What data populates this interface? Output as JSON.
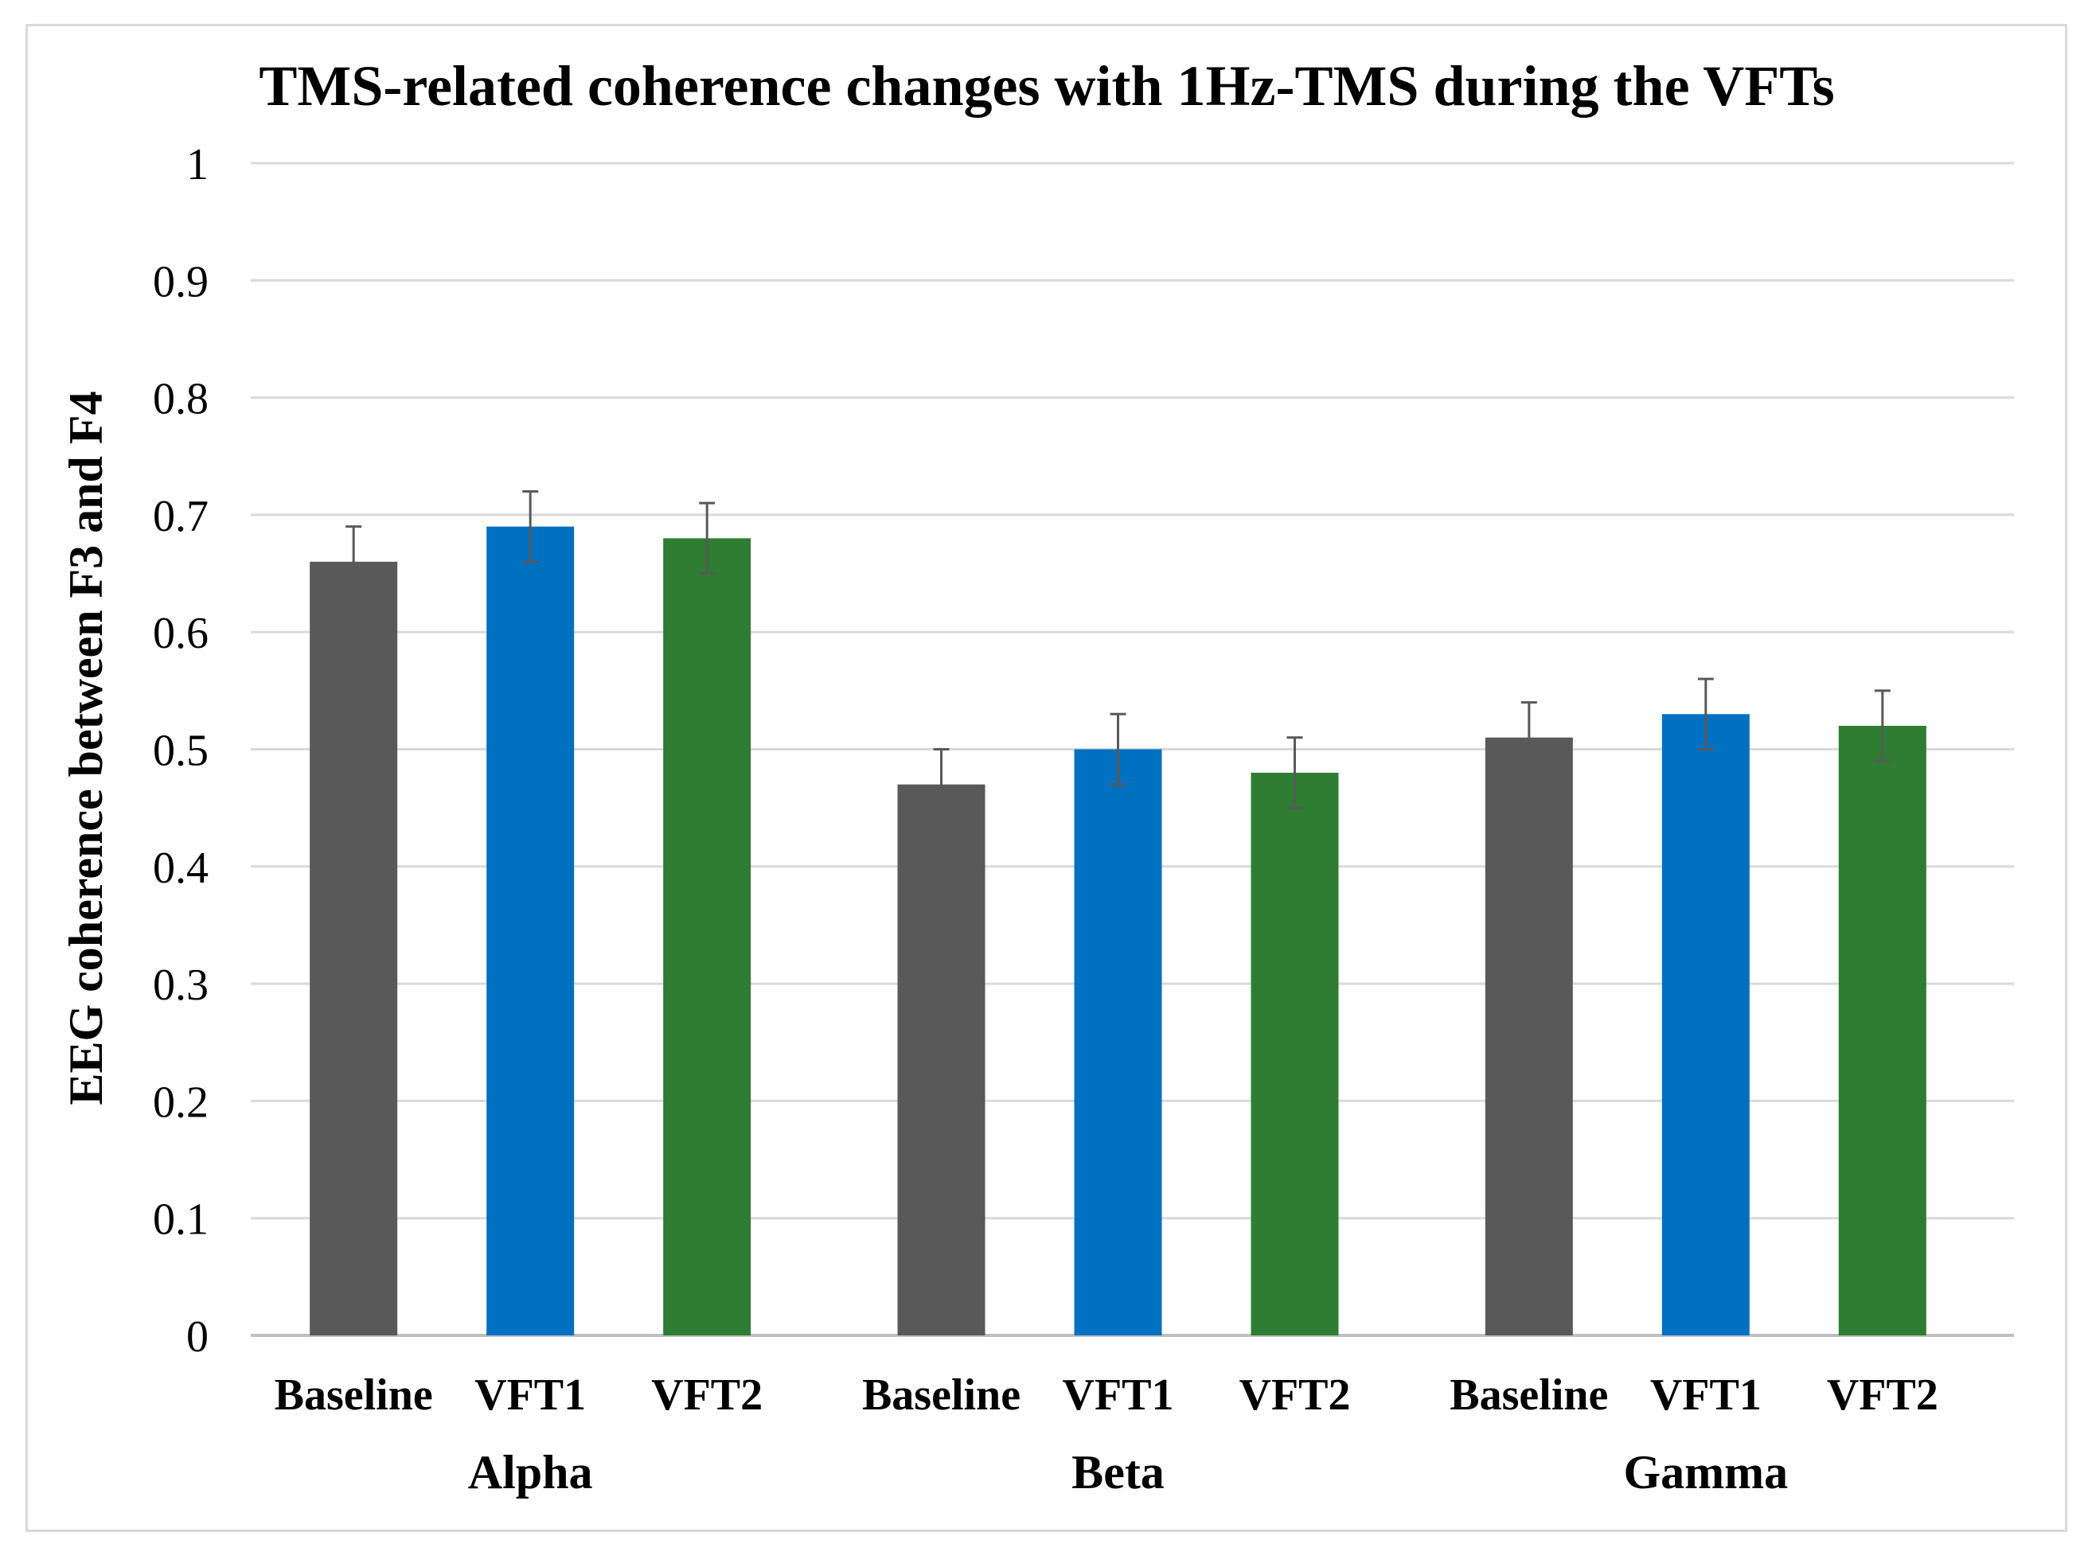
{
  "chart_data": {
    "type": "bar",
    "title": "TMS-related coherence changes with 1Hz-TMS during the VFTs",
    "ylabel": "EEG coherence between F3 and F4",
    "xlabel": "",
    "ylim": [
      0,
      1
    ],
    "yticks": [
      "0",
      "0.1",
      "0.2",
      "0.3",
      "0.4",
      "0.5",
      "0.6",
      "0.7",
      "0.8",
      "0.9",
      "1"
    ],
    "grid": true,
    "legend": "none",
    "groups": [
      {
        "name": "Alpha",
        "bars": [
          {
            "label": "Baseline",
            "value": 0.66,
            "error": 0.03,
            "color": "#595959"
          },
          {
            "label": "VFT1",
            "value": 0.69,
            "error": 0.03,
            "color": "#0070c0"
          },
          {
            "label": "VFT2",
            "value": 0.68,
            "error": 0.03,
            "color": "#2e7d32"
          }
        ]
      },
      {
        "name": "Beta",
        "bars": [
          {
            "label": "Baseline",
            "value": 0.47,
            "error": 0.03,
            "color": "#595959"
          },
          {
            "label": "VFT1",
            "value": 0.5,
            "error": 0.03,
            "color": "#0070c0"
          },
          {
            "label": "VFT2",
            "value": 0.48,
            "error": 0.03,
            "color": "#2e7d32"
          }
        ]
      },
      {
        "name": "Gamma",
        "bars": [
          {
            "label": "Baseline",
            "value": 0.51,
            "error": 0.03,
            "color": "#595959"
          },
          {
            "label": "VFT1",
            "value": 0.53,
            "error": 0.03,
            "color": "#0070c0"
          },
          {
            "label": "VFT2",
            "value": 0.52,
            "error": 0.03,
            "color": "#2e7d32"
          }
        ]
      }
    ],
    "colors": {
      "gridline": "#d9d9d9",
      "axis": "#bfbfbf",
      "errorbar": "#595959",
      "text": "#000000"
    }
  }
}
